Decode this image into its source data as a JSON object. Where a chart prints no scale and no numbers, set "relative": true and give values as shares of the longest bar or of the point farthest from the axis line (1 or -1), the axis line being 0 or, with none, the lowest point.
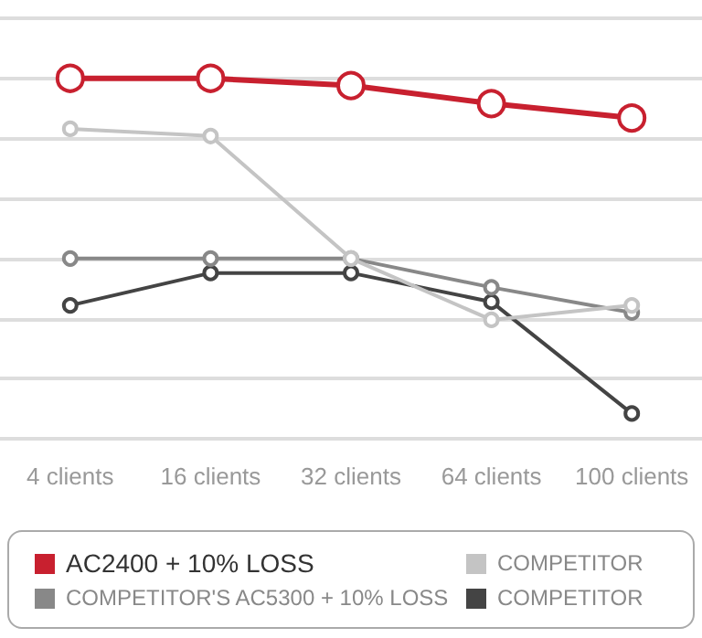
{
  "chart_data": {
    "type": "line",
    "relative": true,
    "categories": [
      "4 clients",
      "16 clients",
      "32 clients",
      "64 clients",
      "100 clients"
    ],
    "series": [
      {
        "name": "AC2400 + 10% LOSS",
        "color": "#c8202f",
        "values": [
          1,
          1,
          0.98,
          0.93,
          0.89
        ]
      },
      {
        "name": "COMPETITOR",
        "color": "#c4c4c4",
        "values": [
          0.86,
          0.84,
          0.5,
          0.33,
          0.37
        ]
      },
      {
        "name": "COMPETITOR'S AC5300 + 10% LOSS",
        "color": "#888888",
        "values": [
          0.5,
          0.5,
          0.5,
          0.42,
          0.35
        ]
      },
      {
        "name": "COMPETITOR",
        "color": "#444444",
        "values": [
          0.37,
          0.46,
          0.46,
          0.38,
          0.07
        ]
      }
    ],
    "grid": "y",
    "legend": "bottom",
    "marker": "circle",
    "line_style": "solid"
  }
}
